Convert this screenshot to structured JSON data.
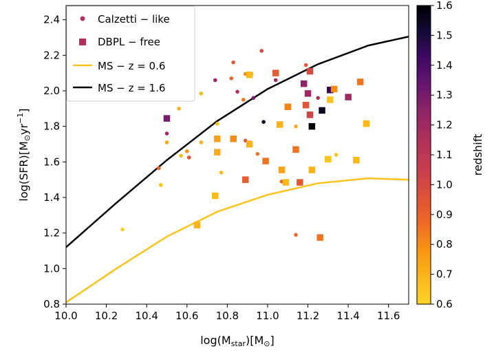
{
  "chart_data": {
    "type": "scatter",
    "title": "",
    "xlabel": "log(M_star)[M_sun]",
    "xlabel_parts": {
      "pre": "log(M",
      "sub": "star",
      "mid": ")[M",
      "sub2": "⊙",
      "post": "]"
    },
    "ylabel": "log(SFR)[M_sun yr^-1]",
    "ylabel_parts": {
      "pre": "log(SFR)[M",
      "sub": "⊙",
      "mid": "yr",
      "sup": "−1",
      "post": "]"
    },
    "xlim": [
      10.0,
      11.7
    ],
    "ylim": [
      0.8,
      2.48
    ],
    "xticks": [
      10.0,
      10.2,
      10.4,
      10.6,
      10.8,
      11.0,
      11.2,
      11.4,
      11.6
    ],
    "xtick_labels": [
      "10.0",
      "10.2",
      "10.4",
      "10.6",
      "10.8",
      "11.0",
      "11.2",
      "11.4",
      "11.6"
    ],
    "yticks": [
      0.8,
      1.0,
      1.2,
      1.4,
      1.6,
      1.8,
      2.0,
      2.2,
      2.4
    ],
    "ytick_labels": [
      "0.8",
      "1.0",
      "1.2",
      "1.4",
      "1.6",
      "1.8",
      "2.0",
      "2.2",
      "2.4"
    ],
    "grid": false,
    "legend_position": "top-left",
    "colorbar": {
      "label": "redshift",
      "range": [
        0.6,
        1.6
      ],
      "ticks": [
        0.6,
        0.7,
        0.8,
        0.9,
        1.0,
        1.1,
        1.2,
        1.3,
        1.4,
        1.5,
        1.6
      ],
      "tick_labels": [
        "0.6",
        "0.7",
        "0.8",
        "0.9",
        "1.0",
        "1.1",
        "1.2",
        "1.3",
        "1.4",
        "1.5",
        "1.6"
      ],
      "colormap": "inferno_r",
      "stops": [
        "#fcd225",
        "#fbb61a",
        "#f89511",
        "#ed6925",
        "#dd513a",
        "#c73d4e",
        "#b0315b",
        "#932667",
        "#6a176e",
        "#420a68",
        "#160b39",
        "#000004"
      ]
    },
    "legend": [
      {
        "label": "Calzetti − like",
        "marker": "circle",
        "color": "#b0315b"
      },
      {
        "label": "DBPL − free",
        "marker": "square",
        "color": "#b0315b"
      },
      {
        "label": "MS − z = 0.6",
        "marker": "line",
        "color": "#fcc31a"
      },
      {
        "label": "MS − z = 1.6",
        "marker": "line",
        "color": "#000000"
      }
    ],
    "lines": [
      {
        "name": "MS − z = 0.6",
        "color": "#fcc31a",
        "points": [
          [
            10.0,
            0.81
          ],
          [
            10.25,
            1.0
          ],
          [
            10.5,
            1.18
          ],
          [
            10.75,
            1.32
          ],
          [
            11.0,
            1.415
          ],
          [
            11.25,
            1.48
          ],
          [
            11.5,
            1.508
          ],
          [
            11.7,
            1.5
          ]
        ]
      },
      {
        "name": "MS − z = 1.6",
        "color": "#000000",
        "points": [
          [
            10.0,
            1.12
          ],
          [
            10.25,
            1.37
          ],
          [
            10.5,
            1.61
          ],
          [
            10.75,
            1.83
          ],
          [
            11.0,
            2.01
          ],
          [
            11.25,
            2.15
          ],
          [
            11.5,
            2.255
          ],
          [
            11.7,
            2.305
          ]
        ]
      }
    ],
    "series": [
      {
        "name": "Calzetti − like",
        "marker": "circle",
        "points": [
          {
            "x": 10.28,
            "y": 1.22,
            "z": 0.62
          },
          {
            "x": 10.46,
            "y": 1.565,
            "z": 0.9
          },
          {
            "x": 10.47,
            "y": 1.47,
            "z": 0.66
          },
          {
            "x": 10.5,
            "y": 1.76,
            "z": 1.2
          },
          {
            "x": 10.5,
            "y": 1.71,
            "z": 0.72
          },
          {
            "x": 10.56,
            "y": 1.9,
            "z": 0.7
          },
          {
            "x": 10.57,
            "y": 1.635,
            "z": 0.68
          },
          {
            "x": 10.6,
            "y": 1.66,
            "z": 0.78
          },
          {
            "x": 10.61,
            "y": 1.625,
            "z": 0.95
          },
          {
            "x": 10.67,
            "y": 1.985,
            "z": 0.68
          },
          {
            "x": 10.67,
            "y": 1.71,
            "z": 0.7
          },
          {
            "x": 10.74,
            "y": 2.06,
            "z": 1.22
          },
          {
            "x": 10.75,
            "y": 1.815,
            "z": 0.66
          },
          {
            "x": 10.77,
            "y": 1.54,
            "z": 0.68
          },
          {
            "x": 10.82,
            "y": 2.07,
            "z": 0.88
          },
          {
            "x": 10.83,
            "y": 2.16,
            "z": 0.95
          },
          {
            "x": 10.85,
            "y": 1.995,
            "z": 1.15
          },
          {
            "x": 10.88,
            "y": 1.95,
            "z": 0.85
          },
          {
            "x": 10.89,
            "y": 2.095,
            "z": 0.8
          },
          {
            "x": 10.89,
            "y": 1.72,
            "z": 0.95
          },
          {
            "x": 10.91,
            "y": 1.71,
            "z": 0.82
          },
          {
            "x": 10.92,
            "y": 2.095,
            "z": 0.7
          },
          {
            "x": 10.93,
            "y": 1.96,
            "z": 1.3
          },
          {
            "x": 10.95,
            "y": 1.645,
            "z": 0.85
          },
          {
            "x": 10.97,
            "y": 2.225,
            "z": 1.0
          },
          {
            "x": 10.98,
            "y": 1.825,
            "z": 1.55
          },
          {
            "x": 11.04,
            "y": 2.06,
            "z": 1.2
          },
          {
            "x": 11.07,
            "y": 1.49,
            "z": 0.9
          },
          {
            "x": 11.14,
            "y": 1.19,
            "z": 0.88
          },
          {
            "x": 11.14,
            "y": 1.8,
            "z": 0.72
          },
          {
            "x": 11.19,
            "y": 2.145,
            "z": 0.93
          },
          {
            "x": 11.25,
            "y": 1.96,
            "z": 1.15
          },
          {
            "x": 11.34,
            "y": 1.64,
            "z": 0.65
          }
        ]
      },
      {
        "name": "DBPL − free",
        "marker": "square",
        "points": [
          {
            "x": 10.5,
            "y": 1.845,
            "z": 1.3
          },
          {
            "x": 10.65,
            "y": 1.245,
            "z": 0.7
          },
          {
            "x": 10.74,
            "y": 1.41,
            "z": 0.68
          },
          {
            "x": 10.75,
            "y": 1.655,
            "z": 0.72
          },
          {
            "x": 10.75,
            "y": 1.73,
            "z": 0.75
          },
          {
            "x": 10.83,
            "y": 1.73,
            "z": 0.8
          },
          {
            "x": 10.89,
            "y": 1.5,
            "z": 0.92
          },
          {
            "x": 10.91,
            "y": 2.09,
            "z": 0.68
          },
          {
            "x": 10.91,
            "y": 1.7,
            "z": 0.7
          },
          {
            "x": 10.99,
            "y": 1.605,
            "z": 0.85
          },
          {
            "x": 11.04,
            "y": 2.1,
            "z": 0.92
          },
          {
            "x": 11.06,
            "y": 1.81,
            "z": 0.7
          },
          {
            "x": 11.07,
            "y": 1.555,
            "z": 0.74
          },
          {
            "x": 11.09,
            "y": 1.485,
            "z": 0.68
          },
          {
            "x": 11.1,
            "y": 1.91,
            "z": 0.82
          },
          {
            "x": 11.14,
            "y": 1.67,
            "z": 0.85
          },
          {
            "x": 11.16,
            "y": 1.485,
            "z": 0.93
          },
          {
            "x": 11.18,
            "y": 2.04,
            "z": 1.25
          },
          {
            "x": 11.19,
            "y": 1.92,
            "z": 0.95
          },
          {
            "x": 11.2,
            "y": 1.985,
            "z": 1.2
          },
          {
            "x": 11.21,
            "y": 2.11,
            "z": 1.0
          },
          {
            "x": 11.21,
            "y": 1.865,
            "z": 1.02
          },
          {
            "x": 11.22,
            "y": 1.8,
            "z": 1.6
          },
          {
            "x": 11.22,
            "y": 1.555,
            "z": 0.7
          },
          {
            "x": 11.26,
            "y": 1.175,
            "z": 0.85
          },
          {
            "x": 11.27,
            "y": 1.89,
            "z": 1.55
          },
          {
            "x": 11.3,
            "y": 1.615,
            "z": 0.65
          },
          {
            "x": 11.31,
            "y": 2.005,
            "z": 1.45
          },
          {
            "x": 11.31,
            "y": 1.95,
            "z": 0.65
          },
          {
            "x": 11.33,
            "y": 2.01,
            "z": 0.8
          },
          {
            "x": 11.4,
            "y": 1.965,
            "z": 1.2
          },
          {
            "x": 11.44,
            "y": 1.61,
            "z": 0.68
          },
          {
            "x": 11.46,
            "y": 2.05,
            "z": 0.85
          },
          {
            "x": 11.49,
            "y": 1.815,
            "z": 0.68
          }
        ]
      }
    ]
  }
}
